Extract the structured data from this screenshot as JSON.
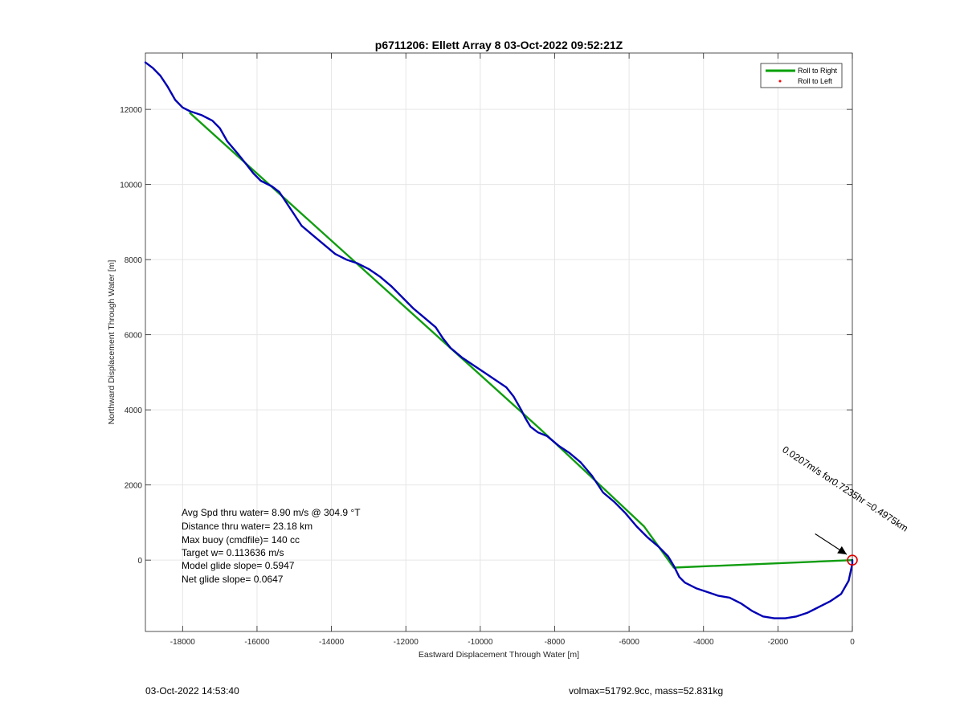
{
  "chart_data": {
    "type": "line",
    "title": "p6711206: Ellett Array 8 03-Oct-2022 09:52:21Z",
    "xlabel": "Eastward Displacement Through Water [m]",
    "ylabel": "Northward Displacement Through Water [m]",
    "xlim": [
      -19000,
      0
    ],
    "ylim": [
      -1900,
      13500
    ],
    "xticks": [
      -18000,
      -16000,
      -14000,
      -12000,
      -10000,
      -8000,
      -6000,
      -4000,
      -2000,
      0
    ],
    "yticks": [
      0,
      2000,
      4000,
      6000,
      8000,
      10000,
      12000
    ],
    "xtick_labels": [
      "-18000",
      "-16000",
      "-14000",
      "-12000",
      "-10000",
      "-8000",
      "-6000",
      "-4000",
      "-2000",
      "0"
    ],
    "ytick_labels": [
      "0",
      "2000",
      "4000",
      "6000",
      "8000",
      "10000",
      "12000"
    ],
    "grid": true,
    "legend_position": "top-right",
    "legend": [
      {
        "label": "Roll to Right",
        "color": "#00a000",
        "style": "line"
      },
      {
        "label": "Roll to Left",
        "color": "#ff0000",
        "style": "dot"
      }
    ],
    "series": [
      {
        "name": "Roll to Right",
        "color": "#109d10",
        "points": [
          [
            -17800,
            11900
          ],
          [
            -8400,
            3500
          ],
          [
            -5600,
            900
          ],
          [
            -4800,
            -200
          ],
          [
            0,
            0
          ]
        ]
      },
      {
        "color": "#0000b4",
        "points": [
          [
            -19000,
            13250
          ],
          [
            -18800,
            13100
          ],
          [
            -18600,
            12900
          ],
          [
            -18400,
            12600
          ],
          [
            -18200,
            12250
          ],
          [
            -18000,
            12050
          ],
          [
            -17800,
            11950
          ],
          [
            -17500,
            11850
          ],
          [
            -17200,
            11700
          ],
          [
            -17000,
            11500
          ],
          [
            -16800,
            11150
          ],
          [
            -16500,
            10800
          ],
          [
            -16300,
            10550
          ],
          [
            -16100,
            10300
          ],
          [
            -15900,
            10100
          ],
          [
            -15600,
            9950
          ],
          [
            -15400,
            9800
          ],
          [
            -15200,
            9500
          ],
          [
            -15000,
            9200
          ],
          [
            -14800,
            8900
          ],
          [
            -14500,
            8650
          ],
          [
            -14200,
            8400
          ],
          [
            -13900,
            8150
          ],
          [
            -13600,
            8000
          ],
          [
            -13300,
            7900
          ],
          [
            -13000,
            7750
          ],
          [
            -12700,
            7550
          ],
          [
            -12400,
            7300
          ],
          [
            -12100,
            7000
          ],
          [
            -11800,
            6700
          ],
          [
            -11500,
            6450
          ],
          [
            -11200,
            6200
          ],
          [
            -11000,
            5900
          ],
          [
            -10800,
            5650
          ],
          [
            -10500,
            5400
          ],
          [
            -10200,
            5200
          ],
          [
            -9900,
            5000
          ],
          [
            -9600,
            4800
          ],
          [
            -9300,
            4600
          ],
          [
            -9100,
            4350
          ],
          [
            -8900,
            4000
          ],
          [
            -8800,
            3800
          ],
          [
            -8650,
            3550
          ],
          [
            -8450,
            3400
          ],
          [
            -8200,
            3300
          ],
          [
            -7900,
            3050
          ],
          [
            -7600,
            2850
          ],
          [
            -7300,
            2600
          ],
          [
            -7000,
            2250
          ],
          [
            -6700,
            1800
          ],
          [
            -6400,
            1550
          ],
          [
            -6100,
            1250
          ],
          [
            -5800,
            900
          ],
          [
            -5500,
            600
          ],
          [
            -5200,
            350
          ],
          [
            -4950,
            100
          ],
          [
            -4800,
            -150
          ],
          [
            -4650,
            -450
          ],
          [
            -4500,
            -600
          ],
          [
            -4200,
            -750
          ],
          [
            -3900,
            -850
          ],
          [
            -3600,
            -950
          ],
          [
            -3300,
            -1000
          ],
          [
            -3000,
            -1150
          ],
          [
            -2700,
            -1350
          ],
          [
            -2400,
            -1500
          ],
          [
            -2100,
            -1550
          ],
          [
            -1800,
            -1550
          ],
          [
            -1500,
            -1500
          ],
          [
            -1200,
            -1400
          ],
          [
            -900,
            -1250
          ],
          [
            -600,
            -1100
          ],
          [
            -300,
            -900
          ],
          [
            -100,
            -550
          ],
          [
            0,
            -100
          ],
          [
            0,
            0
          ]
        ]
      }
    ],
    "current_arrow_label": "0.0207m/s for0.7235hr =0.4975km",
    "current_arrow_from": [
      -1000,
      700
    ],
    "current_arrow_to": [
      -150,
      150
    ],
    "end_marker": {
      "x": 0,
      "y": 0,
      "color": "#dd0000"
    }
  },
  "annotations": [
    "Avg Spd thru water=  8.90 m/s @ 304.9 °T",
    "Distance thru water= 23.18 km",
    "Max buoy (cmdfile)= 140 cc",
    "Target w= 0.113636 m/s",
    "Model glide slope= 0.5947",
    "Net glide slope= 0.0647"
  ],
  "footer": {
    "left": "03-Oct-2022 14:53:40",
    "right": "volmax=51792.9cc, mass=52.831kg"
  }
}
